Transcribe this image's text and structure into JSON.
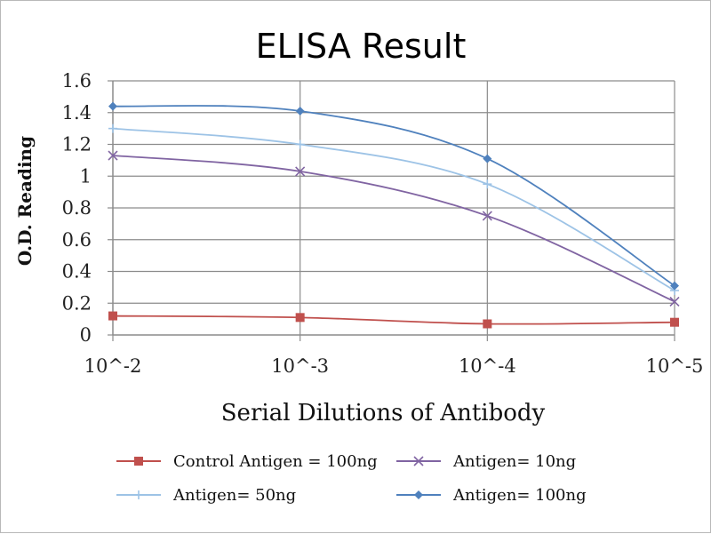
{
  "chart_data": {
    "type": "line",
    "title": "ELISA Result",
    "xlabel": "Serial Dilutions  of Antibody",
    "ylabel": "O.D. Reading",
    "categories": [
      "10^-2",
      "10^-3",
      "10^-4",
      "10^-5"
    ],
    "ylim": [
      0,
      1.6
    ],
    "yticks": [
      "0",
      "0.2",
      "0.4",
      "0.6",
      "0.8",
      "1",
      "1.2",
      "1.4",
      "1.6"
    ],
    "grid": true,
    "legend_position": "bottom",
    "series": [
      {
        "name": "Control Antigen = 100ng",
        "values": [
          0.12,
          0.11,
          0.07,
          0.08
        ],
        "color": "#c0504d",
        "marker": "square"
      },
      {
        "name": "Antigen= 10ng",
        "values": [
          1.13,
          1.03,
          0.75,
          0.21
        ],
        "color": "#8064a2",
        "marker": "x"
      },
      {
        "name": "Antigen= 50ng",
        "values": [
          1.3,
          1.2,
          0.95,
          0.28
        ],
        "color": "#9dc3e6",
        "marker": "plus"
      },
      {
        "name": "Antigen= 100ng",
        "values": [
          1.44,
          1.41,
          1.11,
          0.31
        ],
        "color": "#4f81bd",
        "marker": "diamond"
      }
    ]
  }
}
